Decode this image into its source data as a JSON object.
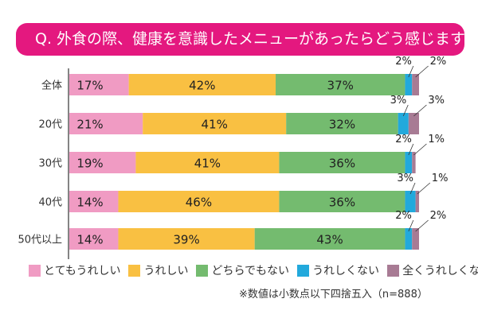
{
  "title": "Q. 外食の際、健康を意識したメニューがあったらどう感じますか？",
  "note": "※数値は小数点以下四捨五入（n=888）",
  "chart_data": {
    "type": "bar",
    "orientation": "horizontal",
    "stacked": true,
    "title": "Q. 外食の際、健康を意識したメニューがあったらどう感じますか？",
    "categories": [
      "全体",
      "20代",
      "30代",
      "40代",
      "50代以上"
    ],
    "series": [
      {
        "name": "とてもうれしい",
        "color": "#f09bc3",
        "values": [
          17,
          21,
          19,
          14,
          14
        ]
      },
      {
        "name": "うれしい",
        "color": "#f9c042",
        "values": [
          42,
          41,
          41,
          46,
          39
        ]
      },
      {
        "name": "どちらでもない",
        "color": "#74bb6f",
        "values": [
          37,
          32,
          36,
          36,
          43
        ]
      },
      {
        "name": "うれしくない",
        "color": "#22a9dc",
        "values": [
          2,
          3,
          2,
          3,
          2
        ]
      },
      {
        "name": "全くうれしくない",
        "color": "#a87b94",
        "values": [
          2,
          3,
          1,
          1,
          2
        ]
      }
    ],
    "unit": "%",
    "legend": "bottom",
    "grid": false
  }
}
